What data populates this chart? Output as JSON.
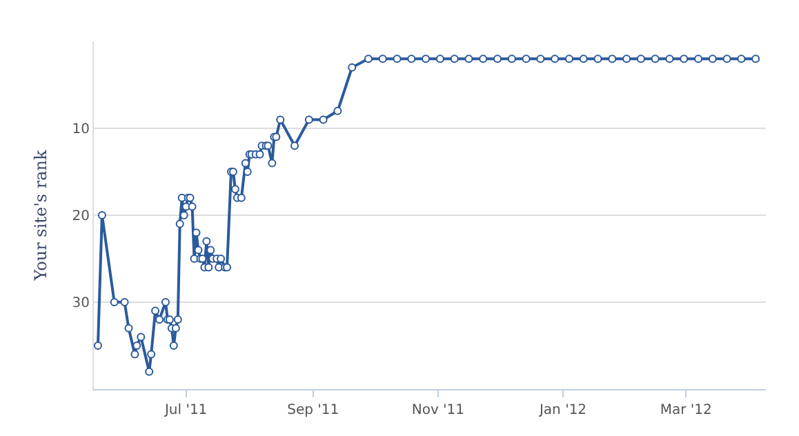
{
  "chart_data": {
    "type": "line",
    "ylabel": "Your site's rank",
    "x": [
      "2011-05-19",
      "2011-05-21",
      "2011-05-27",
      "2011-06-01",
      "2011-06-03",
      "2011-06-06",
      "2011-06-07",
      "2011-06-09",
      "2011-06-13",
      "2011-06-14",
      "2011-06-16",
      "2011-06-18",
      "2011-06-21",
      "2011-06-22",
      "2011-06-23",
      "2011-06-24",
      "2011-06-25",
      "2011-06-26",
      "2011-06-27",
      "2011-06-28",
      "2011-06-29",
      "2011-06-30",
      "2011-07-01",
      "2011-07-02",
      "2011-07-03",
      "2011-07-04",
      "2011-07-05",
      "2011-07-06",
      "2011-07-07",
      "2011-07-08",
      "2011-07-09",
      "2011-07-10",
      "2011-07-11",
      "2011-07-12",
      "2011-07-13",
      "2011-07-14",
      "2011-07-16",
      "2011-07-17",
      "2011-07-18",
      "2011-07-20",
      "2011-07-21",
      "2011-07-23",
      "2011-07-24",
      "2011-07-25",
      "2011-07-26",
      "2011-07-28",
      "2011-07-30",
      "2011-07-31",
      "2011-08-01",
      "2011-08-02",
      "2011-08-04",
      "2011-08-06",
      "2011-08-07",
      "2011-08-09",
      "2011-08-10",
      "2011-08-12",
      "2011-08-13",
      "2011-08-14",
      "2011-08-16",
      "2011-08-23",
      "2011-08-30",
      "2011-09-06",
      "2011-09-13",
      "2011-09-20",
      "2011-09-28",
      "2011-10-05",
      "2011-10-12",
      "2011-10-19",
      "2011-10-26",
      "2011-11-02",
      "2011-11-09",
      "2011-11-16",
      "2011-11-23",
      "2011-11-30",
      "2011-12-07",
      "2011-12-14",
      "2011-12-21",
      "2011-12-28",
      "2012-01-04",
      "2012-01-11",
      "2012-01-18",
      "2012-01-25",
      "2012-02-01",
      "2012-02-08",
      "2012-02-15",
      "2012-02-22",
      "2012-02-29",
      "2012-03-07",
      "2012-03-14",
      "2012-03-21",
      "2012-03-28",
      "2012-04-04"
    ],
    "series": [
      {
        "color": "#2b5a9b",
        "values": [
          35,
          20,
          30,
          30,
          33,
          36,
          35,
          34,
          38,
          36,
          31,
          32,
          30,
          32,
          32,
          33,
          35,
          33,
          32,
          21,
          18,
          20,
          19,
          18,
          18,
          19,
          25,
          22,
          24,
          25,
          25,
          26,
          23,
          26,
          24,
          25,
          25,
          26,
          25,
          26,
          26,
          15,
          15,
          17,
          18,
          18,
          14,
          15,
          13,
          13,
          13,
          13,
          12,
          12,
          12,
          14,
          11,
          11,
          9,
          12,
          9,
          9,
          8,
          3,
          2,
          2,
          2,
          2,
          2,
          2,
          2,
          2,
          2,
          2,
          2,
          2,
          2,
          2,
          2,
          2,
          2,
          2,
          2,
          2,
          2,
          2,
          2,
          2,
          2,
          2,
          2,
          2
        ]
      }
    ],
    "xlim": [
      "2011-05-17",
      "2012-04-09"
    ],
    "xticks": [
      {
        "value": "2011-07-01",
        "label": "Jul '11"
      },
      {
        "value": "2011-09-01",
        "label": "Sep '11"
      },
      {
        "value": "2011-11-01",
        "label": "Nov '11"
      },
      {
        "value": "2012-01-01",
        "label": "Jan '12"
      },
      {
        "value": "2012-03-01",
        "label": "Mar '12"
      }
    ],
    "ylim": [
      40,
      0
    ],
    "yticks": [
      10,
      20,
      30
    ],
    "grid": "y",
    "legend": false,
    "marker": "circle",
    "line_style": "solid"
  }
}
